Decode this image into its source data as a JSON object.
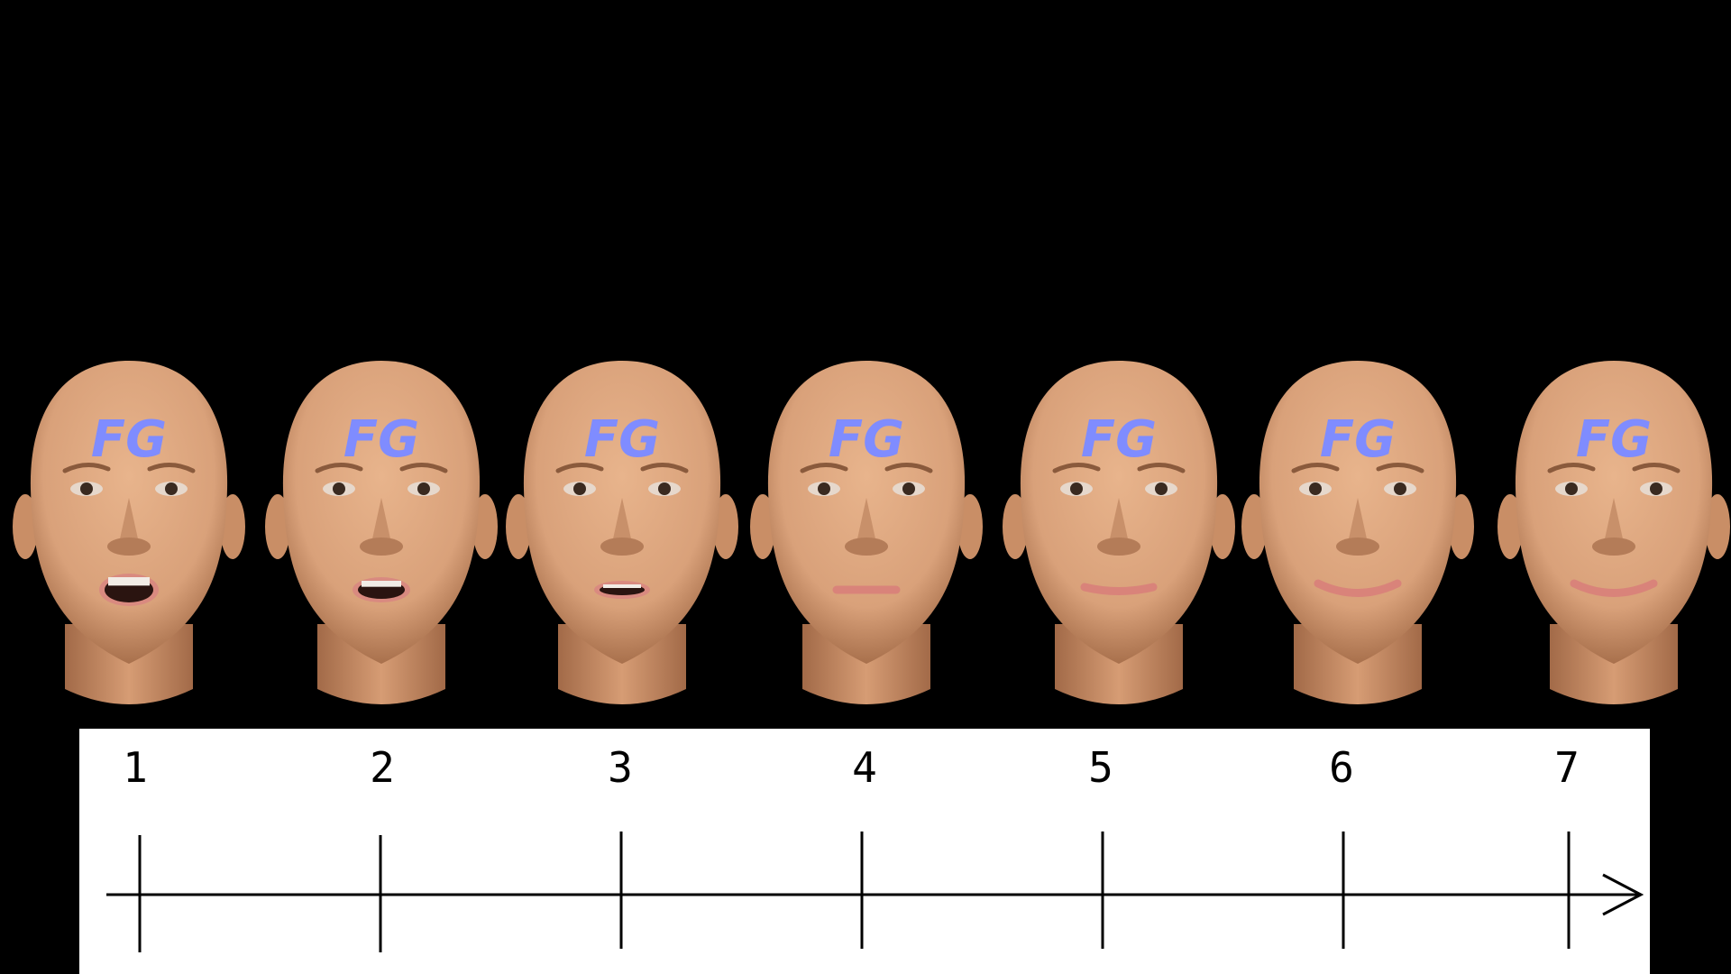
{
  "forehead_text": "FG",
  "faces": [
    {
      "label": "face-1",
      "mouth": "open-wide"
    },
    {
      "label": "face-2",
      "mouth": "open"
    },
    {
      "label": "face-3",
      "mouth": "slightly-open"
    },
    {
      "label": "face-4",
      "mouth": "neutral"
    },
    {
      "label": "face-5",
      "mouth": "slight-smile"
    },
    {
      "label": "face-6",
      "mouth": "smile"
    },
    {
      "label": "face-7",
      "mouth": "smile"
    }
  ],
  "scale": {
    "labels": [
      "1",
      "2",
      "3",
      "4",
      "5",
      "6",
      "7"
    ]
  },
  "colors": {
    "background": "#000000",
    "skin": "#d9a17a",
    "forehead_text": "#7f8cff",
    "panel": "#ffffff"
  }
}
